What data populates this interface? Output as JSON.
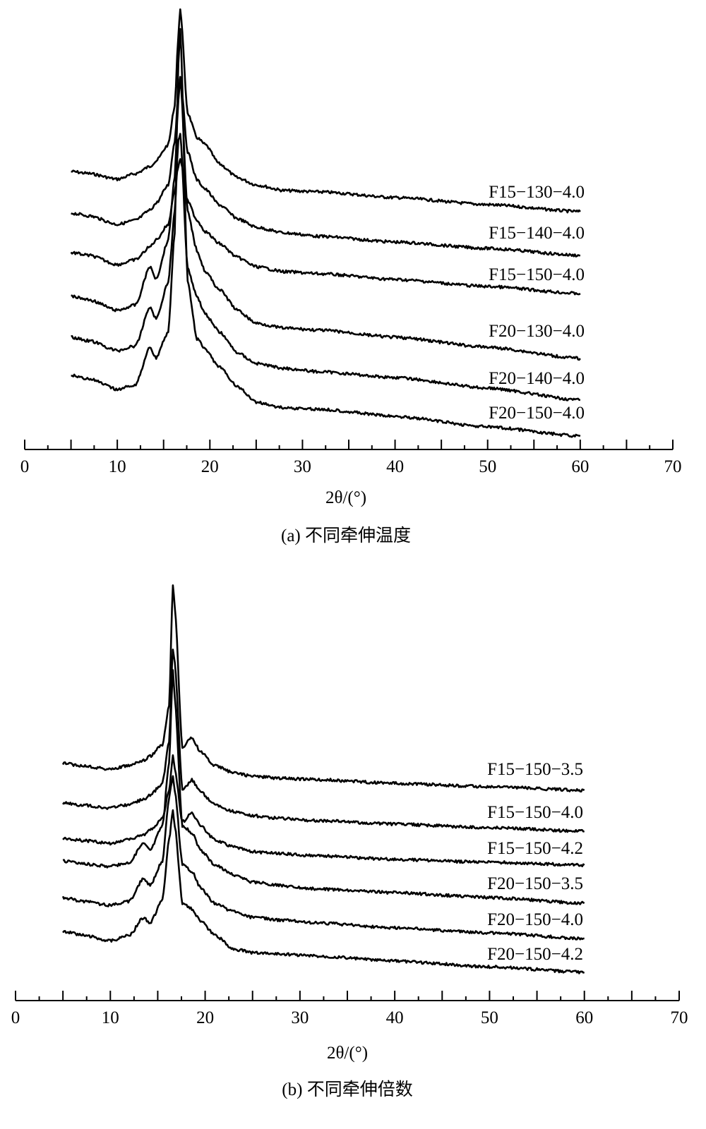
{
  "chart_data": [
    {
      "type": "line",
      "title": "",
      "caption": "(a) 不同牵伸温度",
      "xlabel": "2θ/(°)",
      "ylabel": "",
      "xlim": [
        0,
        70
      ],
      "xticks": [
        0,
        10,
        20,
        30,
        40,
        50,
        60,
        70
      ],
      "y_axis_shown": false,
      "grid": false,
      "legend": "inline labels at right end of each curve",
      "color": "#000000",
      "x": [
        5,
        7,
        10,
        12,
        13.5,
        14.2,
        15.5,
        16.2,
        16.6,
        16.8,
        17.6,
        18.6,
        19.5,
        21,
        23,
        25,
        28,
        32,
        40,
        50,
        60
      ],
      "series": [
        {
          "name": "F15−130−4.0",
          "values": [
            394,
            391,
            383,
            391,
            401,
            409,
            432,
            487,
            587,
            625,
            477,
            442,
            432,
            405,
            385,
            375,
            367,
            365,
            357,
            347,
            337
          ]
        },
        {
          "name": "F15−140−4.0",
          "values": [
            335,
            331,
            319,
            325,
            339,
            349,
            375,
            437,
            507,
            529,
            422,
            382,
            369,
            347,
            327,
            315,
            307,
            302,
            294,
            285,
            275
          ]
        },
        {
          "name": "F15−150−4.0",
          "values": [
            279,
            275,
            262,
            269,
            287,
            297,
            319,
            367,
            402,
            412,
            352,
            325,
            309,
            292,
            272,
            259,
            252,
            249,
            241,
            231,
            221
          ]
        },
        {
          "name": "F20−130−4.0",
          "values": [
            217,
            212,
            197,
            205,
            259,
            242,
            297,
            387,
            497,
            527,
            337,
            282,
            252,
            227,
            197,
            179,
            172,
            169,
            159,
            145,
            129
          ]
        },
        {
          "name": "F20−140−4.0",
          "values": [
            159,
            154,
            140,
            147,
            202,
            185,
            237,
            337,
            437,
            447,
            257,
            217,
            192,
            167,
            137,
            122,
            115,
            110,
            102,
            87,
            70
          ]
        },
        {
          "name": "F20−150−4.0",
          "values": [
            105,
            100,
            85,
            92,
            145,
            130,
            167,
            307,
            547,
            597,
            237,
            157,
            142,
            117,
            89,
            67,
            59,
            57,
            47,
            32,
            19
          ]
        }
      ]
    },
    {
      "type": "line",
      "title": "",
      "caption": "(b) 不同牵伸倍数",
      "xlabel": "2θ/(°)",
      "ylabel": "",
      "xlim": [
        0,
        70
      ],
      "xticks": [
        0,
        10,
        20,
        30,
        40,
        50,
        60,
        70
      ],
      "y_axis_shown": false,
      "grid": false,
      "legend": "inline labels at right end of each curve",
      "color": "#000000",
      "x": [
        5,
        7,
        10,
        12,
        13.5,
        14.2,
        15.5,
        16.2,
        16.6,
        16.8,
        17.6,
        18.6,
        19.5,
        21,
        23,
        25,
        28,
        32,
        40,
        50,
        60
      ],
      "series": [
        {
          "name": "F15−150−3.5",
          "values": [
            336,
            333,
            328,
            333,
            340,
            346,
            363,
            418,
            590,
            558,
            358,
            373,
            353,
            333,
            323,
            318,
            315,
            313,
            308,
            303,
            298
          ]
        },
        {
          "name": "F15−150−4.0",
          "values": [
            280,
            277,
            273,
            278,
            285,
            291,
            308,
            368,
            498,
            478,
            298,
            313,
            296,
            278,
            268,
            262,
            258,
            255,
            250,
            245,
            240
          ]
        },
        {
          "name": "F15−150−4.2",
          "values": [
            230,
            227,
            223,
            228,
            235,
            241,
            258,
            298,
            348,
            328,
            253,
            266,
            248,
            228,
            218,
            211,
            208,
            205,
            200,
            196,
            192
          ]
        },
        {
          "name": "F20−150−3.5",
          "values": [
            198,
            194,
            190,
            196,
            223,
            213,
            248,
            338,
            468,
            428,
            248,
            238,
            213,
            193,
            178,
            168,
            163,
            158,
            153,
            146,
            138
          ]
        },
        {
          "name": "F20−150−4.0",
          "values": [
            146,
            141,
            135,
            141,
            173,
            163,
            198,
            288,
            318,
            298,
            193,
            183,
            160,
            138,
            126,
            118,
            114,
            110,
            103,
            96,
            88
          ]
        },
        {
          "name": "F20−150−4.2",
          "values": [
            98,
            93,
            85,
            92,
            118,
            110,
            143,
            228,
            268,
            248,
            138,
            130,
            113,
            93,
            73,
            68,
            66,
            63,
            56,
            48,
            40
          ]
        }
      ]
    }
  ]
}
